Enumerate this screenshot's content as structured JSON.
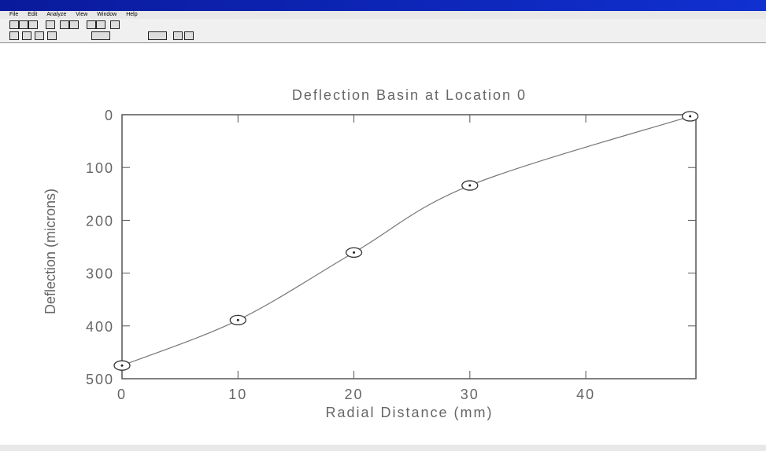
{
  "menu": [
    "File",
    "Edit",
    "Analyze",
    "View",
    "Window",
    "Help"
  ],
  "chart_data": {
    "type": "line",
    "title": "Deflection Basin at Location 0",
    "x_label": "Radial Distance (mm)",
    "y_label": "Deflection (microns)",
    "x": [
      0,
      10,
      20,
      30,
      49
    ],
    "values": [
      475,
      389,
      261,
      134,
      3
    ],
    "color": "#777777",
    "markers": true,
    "y_inverted": true,
    "xlim": [
      0,
      49.5
    ],
    "ylim": [
      0,
      500
    ],
    "xticks": [
      0,
      10,
      20,
      30,
      40
    ],
    "yticks": [
      0,
      100,
      200,
      300,
      400,
      500
    ]
  }
}
